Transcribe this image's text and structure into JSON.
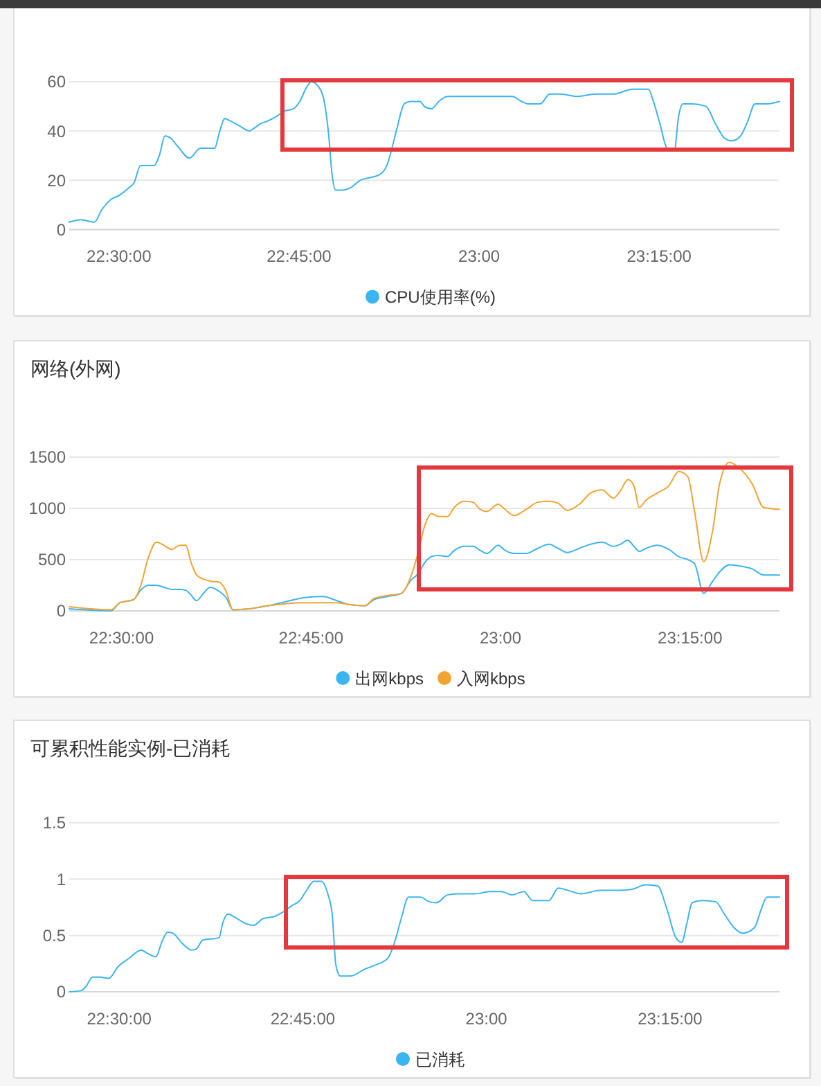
{
  "chart_data": [
    {
      "type": "line",
      "x": [
        22.431,
        22.447,
        22.466,
        22.476,
        22.488,
        22.501,
        22.514,
        22.521,
        22.53,
        22.549,
        22.556,
        22.564,
        22.572,
        22.581,
        22.598,
        22.613,
        22.633,
        22.639,
        22.647,
        22.655,
        22.668,
        22.681,
        22.687,
        22.697,
        22.706,
        22.719,
        22.729,
        22.742,
        22.751,
        22.761,
        22.767,
        22.777,
        22.785,
        22.791,
        22.796,
        22.801,
        22.809,
        22.822,
        22.835,
        22.847,
        22.86,
        22.872,
        22.879,
        22.886,
        22.896,
        22.905,
        22.918,
        22.924,
        22.934,
        22.944,
        22.956,
        22.976,
        23.008,
        23.046,
        23.059,
        23.069,
        23.085,
        23.098,
        23.113,
        23.136,
        23.162,
        23.187,
        23.213,
        23.235,
        23.242,
        23.251,
        23.261,
        23.271,
        23.277,
        23.283,
        23.296,
        23.315,
        23.328,
        23.341,
        23.351,
        23.363,
        23.373,
        23.383,
        23.399,
        23.417
      ],
      "series": [
        {
          "name": "CPU使用率(%)",
          "color": "#3bb4f2",
          "values": [
            3,
            4,
            3,
            8,
            12,
            14,
            17,
            19,
            26,
            26,
            30,
            38,
            37,
            34,
            29,
            33,
            33,
            39,
            45,
            44,
            42,
            40,
            41,
            43,
            44,
            46,
            48,
            49,
            52,
            58,
            60,
            58,
            52,
            39,
            22,
            16,
            16,
            17,
            20,
            21,
            22,
            26,
            33,
            41,
            51,
            52,
            52,
            50,
            49,
            52,
            54,
            54,
            54,
            54,
            52,
            51,
            51,
            55,
            55,
            54,
            55,
            55,
            57,
            57,
            52,
            43,
            33,
            32,
            46,
            51,
            51,
            50,
            43,
            37,
            36,
            38,
            44,
            51,
            51,
            52
          ]
        }
      ],
      "xlim": [
        22.431,
        23.417
      ],
      "ylim": [
        0,
        60
      ],
      "xticks": [
        {
          "value": 22.5,
          "label": "22:30:00"
        },
        {
          "value": 22.75,
          "label": "22:45:00"
        },
        {
          "value": 23,
          "label": "23:00"
        },
        {
          "value": 23.25,
          "label": "23:15:00"
        }
      ],
      "yticks": [
        0,
        20,
        40,
        60
      ],
      "grid": "y",
      "legend": "bottom"
    },
    {
      "type": "line",
      "title": "网络(外网)",
      "x": [
        22.431,
        22.486,
        22.498,
        22.516,
        22.525,
        22.535,
        22.546,
        22.556,
        22.566,
        22.577,
        22.585,
        22.591,
        22.599,
        22.608,
        22.617,
        22.629,
        22.638,
        22.647,
        22.669,
        22.693,
        22.717,
        22.742,
        22.766,
        22.784,
        22.802,
        22.821,
        22.833,
        22.851,
        22.869,
        22.882,
        22.891,
        22.9,
        22.909,
        22.918,
        22.93,
        22.939,
        22.952,
        22.964,
        22.973,
        22.982,
        22.997,
        23.006,
        23.018,
        23.034,
        23.049,
        23.064,
        23.076,
        23.088,
        23.104,
        23.119,
        23.134,
        23.149,
        23.158,
        23.168,
        23.176,
        23.183,
        23.192,
        23.207,
        23.222,
        23.235,
        23.247,
        23.256,
        23.268,
        23.28,
        23.289,
        23.302,
        23.314,
        23.332,
        23.347,
        23.368
      ],
      "series": [
        {
          "name": "出网kbps",
          "color": "#3bb4f2",
          "values": [
            20,
            0,
            80,
            110,
            200,
            250,
            250,
            230,
            210,
            210,
            200,
            160,
            100,
            170,
            230,
            190,
            130,
            10,
            20,
            50,
            90,
            130,
            140,
            100,
            60,
            50,
            110,
            140,
            170,
            300,
            360,
            470,
            530,
            540,
            530,
            590,
            630,
            630,
            590,
            560,
            640,
            590,
            560,
            560,
            610,
            650,
            610,
            570,
            610,
            650,
            670,
            630,
            650,
            690,
            630,
            580,
            610,
            640,
            600,
            530,
            500,
            460,
            170,
            290,
            380,
            450,
            440,
            410,
            350,
            350
          ]
        },
        {
          "name": "入网kbps",
          "color": "#f2a431",
          "values": [
            40,
            10,
            80,
            110,
            240,
            510,
            670,
            640,
            600,
            640,
            640,
            490,
            350,
            310,
            290,
            280,
            190,
            10,
            20,
            50,
            70,
            80,
            80,
            80,
            60,
            50,
            120,
            150,
            170,
            340,
            560,
            830,
            950,
            920,
            920,
            1010,
            1070,
            1060,
            990,
            970,
            1040,
            990,
            930,
            990,
            1060,
            1070,
            1050,
            980,
            1040,
            1150,
            1180,
            1100,
            1170,
            1280,
            1220,
            1010,
            1080,
            1150,
            1220,
            1360,
            1310,
            970,
            480,
            790,
            1240,
            1450,
            1400,
            1240,
            1010,
            990
          ]
        }
      ],
      "xlim": [
        22.431,
        23.368
      ],
      "ylim": [
        0,
        1500
      ],
      "xticks": [
        {
          "value": 22.5,
          "label": "22:30:00"
        },
        {
          "value": 22.75,
          "label": "22:45:00"
        },
        {
          "value": 23,
          "label": "23:00"
        },
        {
          "value": 23.25,
          "label": "23:15:00"
        }
      ],
      "yticks": [
        0,
        500,
        1000,
        1500
      ],
      "grid": "y",
      "legend": "bottom"
    },
    {
      "type": "line",
      "title": "可累积性能实例-已消耗",
      "x": [
        22.432,
        22.448,
        22.454,
        22.464,
        22.473,
        22.486,
        22.498,
        22.514,
        22.53,
        22.539,
        22.55,
        22.558,
        22.566,
        22.573,
        22.586,
        22.599,
        22.605,
        22.614,
        22.627,
        22.636,
        22.641,
        22.648,
        22.658,
        22.671,
        22.683,
        22.696,
        22.712,
        22.721,
        22.734,
        22.746,
        22.756,
        22.765,
        22.775,
        22.784,
        22.79,
        22.795,
        22.801,
        22.815,
        22.834,
        22.85,
        22.866,
        22.875,
        22.884,
        22.894,
        22.91,
        22.922,
        22.932,
        22.947,
        22.96,
        22.985,
        23.004,
        23.02,
        23.035,
        23.051,
        23.063,
        23.085,
        23.098,
        23.111,
        23.129,
        23.155,
        23.18,
        23.198,
        23.217,
        23.233,
        23.246,
        23.258,
        23.266,
        23.273,
        23.28,
        23.293,
        23.312,
        23.324,
        23.337,
        23.349,
        23.365,
        23.374,
        23.382,
        23.399
      ],
      "series": [
        {
          "name": "已消耗",
          "color": "#3bb4f2",
          "values": [
            0,
            0.01,
            0.04,
            0.13,
            0.13,
            0.12,
            0.22,
            0.3,
            0.37,
            0.34,
            0.31,
            0.44,
            0.53,
            0.52,
            0.43,
            0.37,
            0.38,
            0.46,
            0.47,
            0.48,
            0.61,
            0.69,
            0.66,
            0.61,
            0.59,
            0.65,
            0.67,
            0.7,
            0.76,
            0.81,
            0.91,
            0.98,
            0.98,
            0.87,
            0.69,
            0.24,
            0.14,
            0.14,
            0.2,
            0.24,
            0.3,
            0.44,
            0.65,
            0.84,
            0.84,
            0.8,
            0.79,
            0.86,
            0.87,
            0.87,
            0.89,
            0.89,
            0.86,
            0.89,
            0.81,
            0.81,
            0.92,
            0.9,
            0.87,
            0.9,
            0.9,
            0.91,
            0.95,
            0.94,
            0.73,
            0.48,
            0.44,
            0.61,
            0.79,
            0.81,
            0.8,
            0.69,
            0.57,
            0.52,
            0.57,
            0.73,
            0.84,
            0.84
          ]
        }
      ],
      "xlim": [
        22.432,
        23.399
      ],
      "ylim": [
        0,
        1.5
      ],
      "xticks": [
        {
          "value": 22.5,
          "label": "22:30:00"
        },
        {
          "value": 22.75,
          "label": "22:45:00"
        },
        {
          "value": 23,
          "label": "23:00"
        },
        {
          "value": 23.25,
          "label": "23:15:00"
        }
      ],
      "yticks": [
        0,
        0.5,
        1,
        1.5
      ],
      "grid": "y",
      "legend": "bottom"
    }
  ]
}
